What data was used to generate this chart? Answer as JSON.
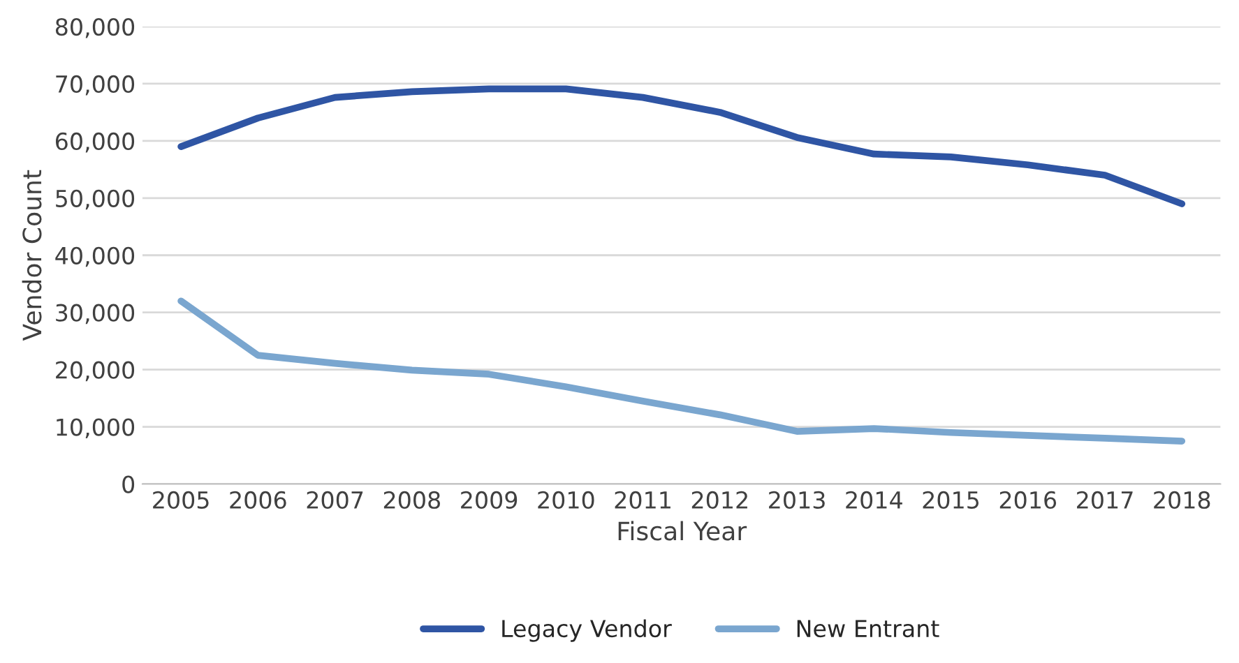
{
  "chart_data": {
    "type": "line",
    "xlabel": "Fiscal Year",
    "ylabel": "Vendor Count",
    "categories": [
      "2005",
      "2006",
      "2007",
      "2008",
      "2009",
      "2010",
      "2011",
      "2012",
      "2013",
      "2014",
      "2015",
      "2016",
      "2017",
      "2018"
    ],
    "series": [
      {
        "name": "Legacy Vendor",
        "color": "#2f55a4",
        "values": [
          59000,
          64000,
          67600,
          68600,
          69100,
          69100,
          67600,
          65000,
          60600,
          57700,
          57200,
          55800,
          54000,
          49000
        ]
      },
      {
        "name": "New Entrant",
        "color": "#7aa6cf",
        "values": [
          32000,
          22500,
          21100,
          19900,
          19200,
          17000,
          14500,
          12100,
          9200,
          9700,
          9000,
          8500,
          8000,
          7500
        ]
      }
    ],
    "ylim": [
      0,
      80000
    ],
    "yticks": [
      0,
      {
        "value": 10000,
        "label": "10,000"
      },
      {
        "value": 20000,
        "label": "20,000"
      },
      {
        "value": 30000,
        "label": "30,000"
      },
      {
        "value": 40000,
        "label": "40,000"
      },
      {
        "value": 50000,
        "label": "50,000"
      },
      {
        "value": 60000,
        "label": "60,000"
      },
      {
        "value": 70000,
        "label": "70,000"
      },
      {
        "value": 80000,
        "label": "80,000"
      }
    ],
    "grid": "y",
    "legend": "bottom",
    "marker": "none",
    "line_style": "solid"
  }
}
